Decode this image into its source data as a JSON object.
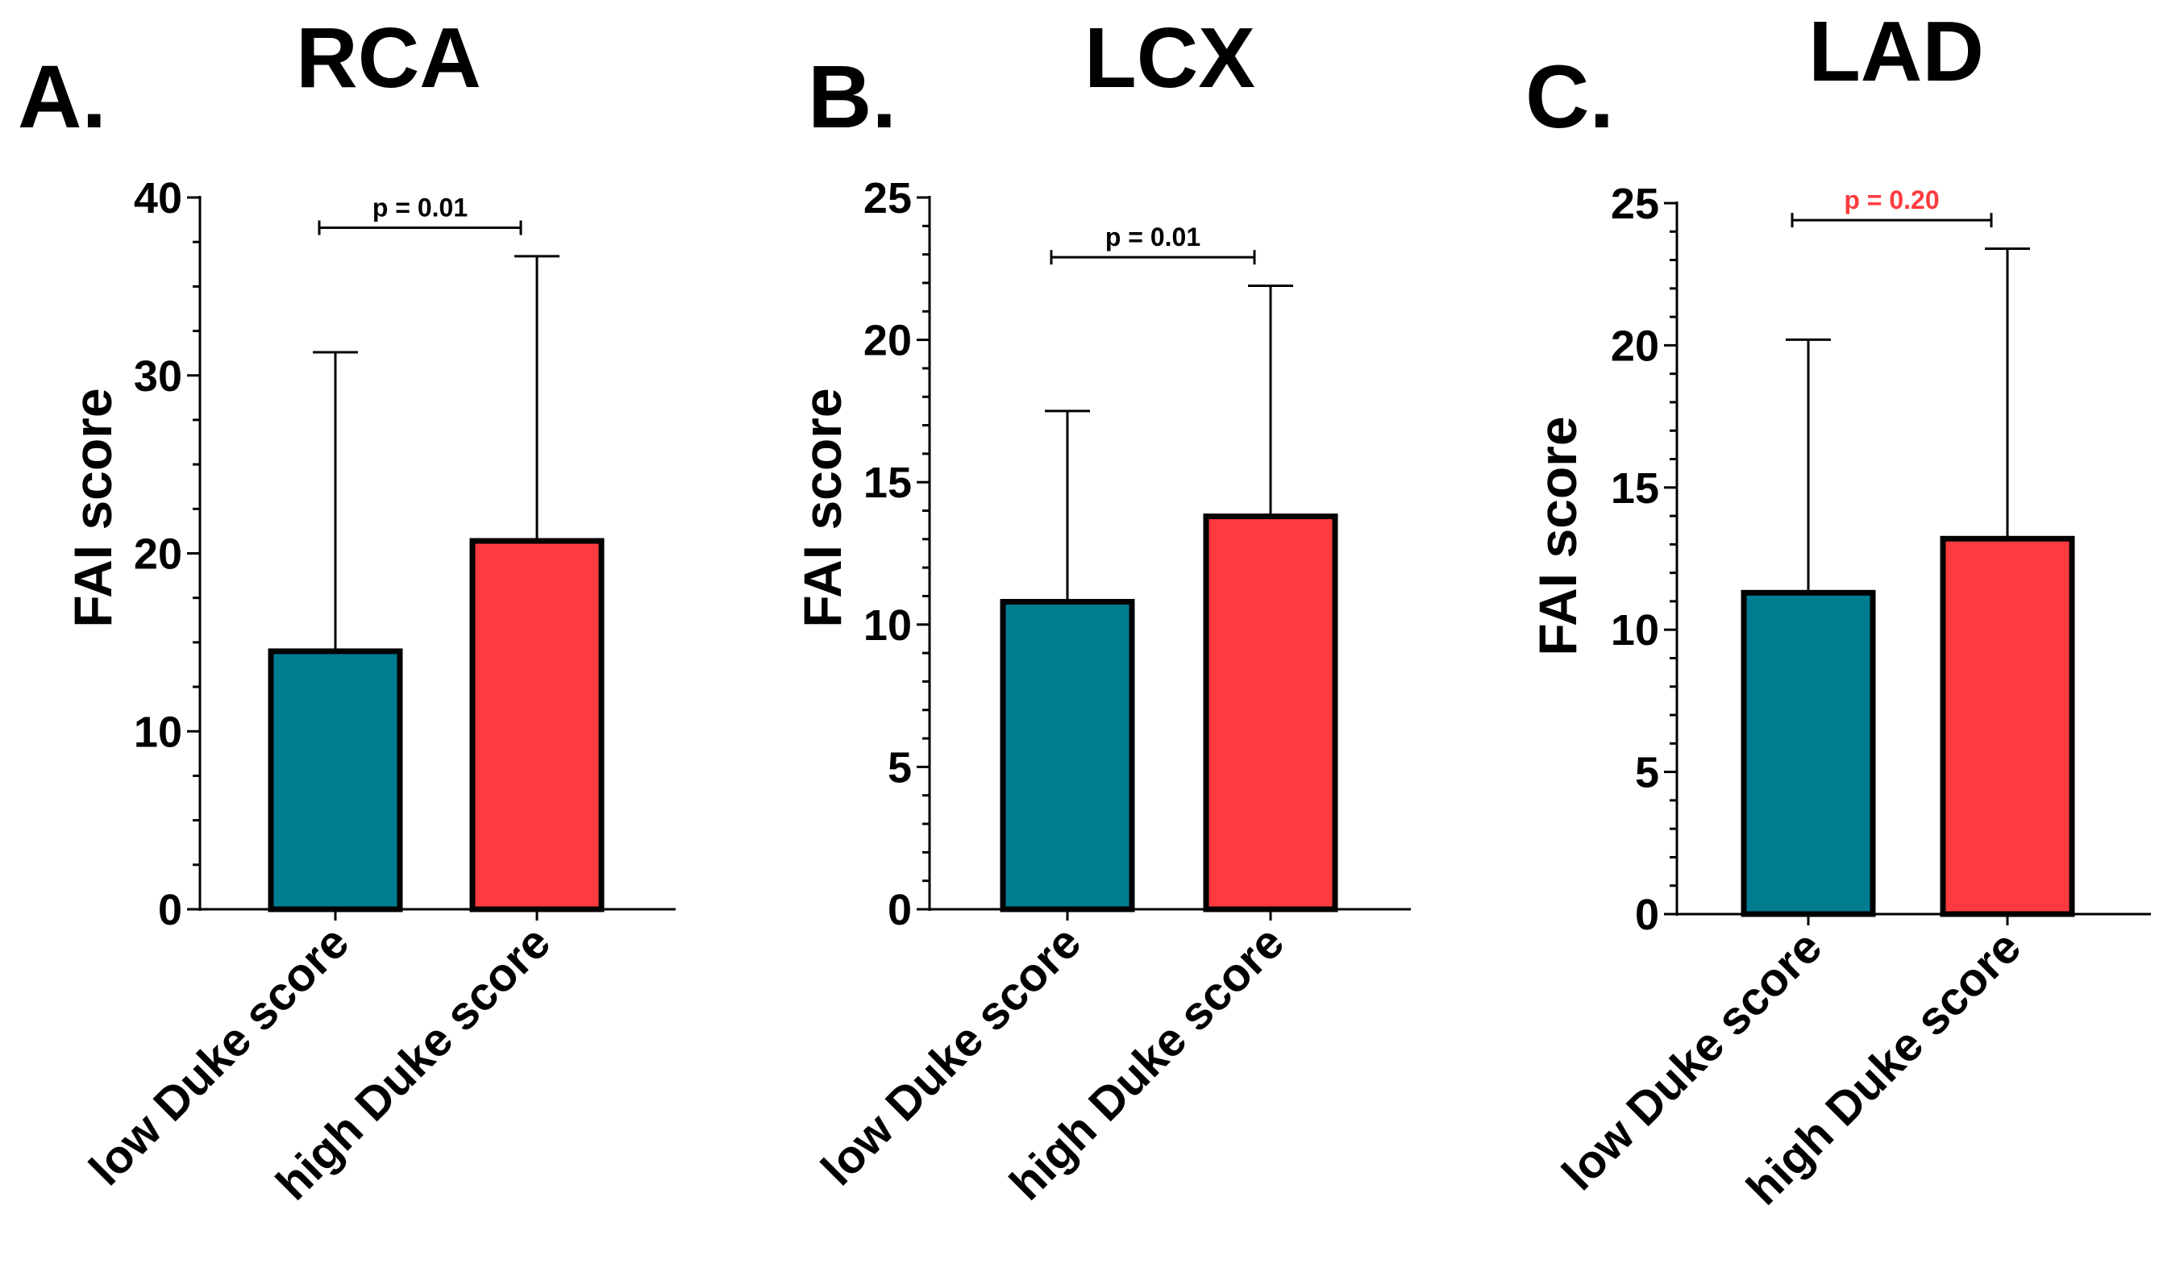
{
  "chart_data": [
    {
      "type": "bar",
      "panel": "A.",
      "title": "RCA",
      "ylabel": "FAI score",
      "xlabel": "",
      "categories": [
        "low Duke score",
        "high Duke score"
      ],
      "values": [
        14.5,
        20.7
      ],
      "error_upper": [
        31.3,
        36.7
      ],
      "ylim": [
        0,
        40
      ],
      "yticks": [
        0,
        10,
        20,
        30,
        40
      ],
      "minor_step": 2.5,
      "bar_colors": [
        "#007C91",
        "#FF3B3F"
      ],
      "p_value": "p = 0.01",
      "p_color": "#000000",
      "p_bracket_y": 38.3
    },
    {
      "type": "bar",
      "panel": "B.",
      "title": "LCX",
      "ylabel": "FAI score",
      "xlabel": "",
      "categories": [
        "low Duke score",
        "high Duke score"
      ],
      "values": [
        10.8,
        13.8
      ],
      "error_upper": [
        17.5,
        21.9
      ],
      "ylim": [
        0,
        25
      ],
      "yticks": [
        0,
        5,
        10,
        15,
        20,
        25
      ],
      "minor_step": 1,
      "bar_colors": [
        "#007C91",
        "#FF3B3F"
      ],
      "p_value": "p = 0.01",
      "p_color": "#000000",
      "p_bracket_y": 22.9
    },
    {
      "type": "bar",
      "panel": "C.",
      "title": "LAD",
      "ylabel": "FAI score",
      "xlabel": "",
      "categories": [
        "low Duke score",
        "high Duke score"
      ],
      "values": [
        11.3,
        13.2
      ],
      "error_upper": [
        20.2,
        23.4
      ],
      "ylim": [
        0,
        25
      ],
      "yticks": [
        0,
        5,
        10,
        15,
        20,
        25
      ],
      "minor_step": 1,
      "bar_colors": [
        "#007C91",
        "#FF3B3F"
      ],
      "p_value": "p = 0.20",
      "p_color": "#FF3B3F",
      "p_bracket_y": 24.4
    }
  ]
}
